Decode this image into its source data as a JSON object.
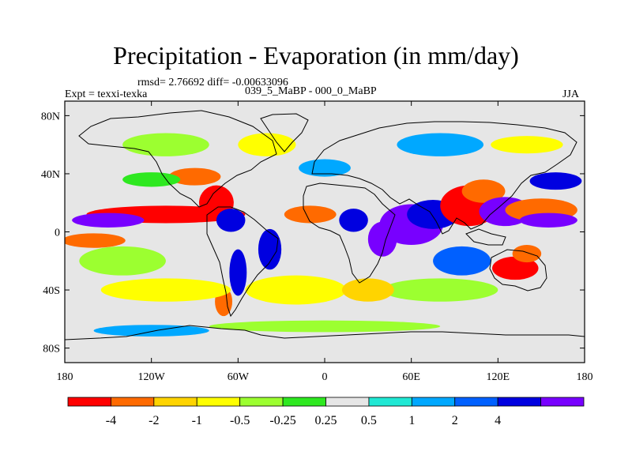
{
  "header": {
    "title": "Precipitation - Evaporation (in mm/day)",
    "stats": "rmsd= 2.76692 diff= -0.00633096",
    "subtitle": "039_5_MaBP - 000_0_MaBP",
    "experiment": "Expt = texxi-texka",
    "season": "JJA"
  },
  "chart_data": {
    "type": "heatmap",
    "title": "Precipitation - Evaporation (in mm/day)",
    "subtitle": "039_5_MaBP - 000_0_MaBP",
    "xlabel": "",
    "ylabel": "",
    "xlim": [
      -180,
      180
    ],
    "ylim": [
      -90,
      90
    ],
    "x_ticks": [
      {
        "value": -180,
        "label": "180"
      },
      {
        "value": -120,
        "label": "120W"
      },
      {
        "value": -60,
        "label": "60W"
      },
      {
        "value": 0,
        "label": "0"
      },
      {
        "value": 60,
        "label": "60E"
      },
      {
        "value": 120,
        "label": "120E"
      },
      {
        "value": 180,
        "label": "180"
      }
    ],
    "y_ticks": [
      {
        "value": 80,
        "label": "80N"
      },
      {
        "value": 40,
        "label": "40N"
      },
      {
        "value": 0,
        "label": "0"
      },
      {
        "value": -40,
        "label": "40S"
      },
      {
        "value": -80,
        "label": "80S"
      }
    ],
    "colorbar": {
      "levels": [
        -4,
        -2,
        -1,
        -0.5,
        -0.25,
        0.25,
        0.5,
        1,
        2,
        4
      ],
      "labels": [
        "-4",
        "-2",
        "-1",
        "-0.5",
        "-0.25",
        "0.25",
        "0.5",
        "1",
        "2",
        "4"
      ],
      "colors": [
        "#ff0000",
        "#ff6a00",
        "#ffd400",
        "#ffff00",
        "#9cff30",
        "#2ee820",
        "#e6e6e6",
        "#20e8d4",
        "#00a8ff",
        "#0060ff",
        "#0000e0",
        "#7800ff"
      ]
    },
    "anomaly_regions": [
      {
        "lon": -110,
        "lat": 12,
        "rlon": 55,
        "rlat": 6,
        "level": 0
      },
      {
        "lon": -150,
        "lat": 8,
        "rlon": 25,
        "rlat": 5,
        "level": 11
      },
      {
        "lon": -160,
        "lat": -6,
        "rlon": 22,
        "rlat": 5,
        "level": 1
      },
      {
        "lon": -75,
        "lat": 20,
        "rlon": 12,
        "rlat": 12,
        "level": 0
      },
      {
        "lon": -65,
        "lat": 8,
        "rlon": 10,
        "rlat": 8,
        "level": 10
      },
      {
        "lon": -60,
        "lat": -28,
        "rlon": 6,
        "rlat": 16,
        "level": 10
      },
      {
        "lon": -38,
        "lat": -12,
        "rlon": 8,
        "rlat": 14,
        "level": 10
      },
      {
        "lon": -70,
        "lat": -48,
        "rlon": 6,
        "rlat": 10,
        "level": 1
      },
      {
        "lon": -90,
        "lat": 38,
        "rlon": 18,
        "rlat": 6,
        "level": 1
      },
      {
        "lon": -120,
        "lat": 36,
        "rlon": 20,
        "rlat": 5,
        "level": 5
      },
      {
        "lon": -140,
        "lat": -20,
        "rlon": 30,
        "rlat": 10,
        "level": 4
      },
      {
        "lon": -110,
        "lat": -40,
        "rlon": 45,
        "rlat": 8,
        "level": 3
      },
      {
        "lon": -20,
        "lat": -40,
        "rlon": 35,
        "rlat": 10,
        "level": 3
      },
      {
        "lon": 0,
        "lat": 44,
        "rlon": 18,
        "rlat": 6,
        "level": 8
      },
      {
        "lon": -10,
        "lat": 12,
        "rlon": 18,
        "rlat": 6,
        "level": 1
      },
      {
        "lon": 20,
        "lat": 8,
        "rlon": 10,
        "rlat": 8,
        "level": 10
      },
      {
        "lon": 40,
        "lat": -5,
        "rlon": 10,
        "rlat": 12,
        "level": 11
      },
      {
        "lon": 60,
        "lat": 5,
        "rlon": 22,
        "rlat": 14,
        "level": 11
      },
      {
        "lon": 75,
        "lat": 12,
        "rlon": 18,
        "rlat": 10,
        "level": 10
      },
      {
        "lon": 100,
        "lat": 18,
        "rlon": 20,
        "rlat": 14,
        "level": 0
      },
      {
        "lon": 110,
        "lat": 28,
        "rlon": 15,
        "rlat": 8,
        "level": 1
      },
      {
        "lon": 125,
        "lat": 14,
        "rlon": 18,
        "rlat": 10,
        "level": 11
      },
      {
        "lon": 150,
        "lat": 15,
        "rlon": 25,
        "rlat": 8,
        "level": 1
      },
      {
        "lon": 155,
        "lat": 8,
        "rlon": 20,
        "rlat": 5,
        "level": 11
      },
      {
        "lon": 160,
        "lat": 35,
        "rlon": 18,
        "rlat": 6,
        "level": 10
      },
      {
        "lon": 132,
        "lat": -25,
        "rlon": 16,
        "rlat": 8,
        "level": 0
      },
      {
        "lon": 140,
        "lat": -15,
        "rlon": 10,
        "rlat": 6,
        "level": 1
      },
      {
        "lon": 95,
        "lat": -20,
        "rlon": 20,
        "rlat": 10,
        "level": 9
      },
      {
        "lon": 80,
        "lat": -40,
        "rlon": 40,
        "rlat": 8,
        "level": 4
      },
      {
        "lon": 30,
        "lat": -40,
        "rlon": 18,
        "rlat": 8,
        "level": 2
      },
      {
        "lon": -40,
        "lat": 60,
        "rlon": 20,
        "rlat": 8,
        "level": 3
      },
      {
        "lon": -110,
        "lat": 60,
        "rlon": 30,
        "rlat": 8,
        "level": 4
      },
      {
        "lon": 80,
        "lat": 60,
        "rlon": 30,
        "rlat": 8,
        "level": 8
      },
      {
        "lon": 140,
        "lat": 60,
        "rlon": 25,
        "rlat": 6,
        "level": 3
      },
      {
        "lon": 0,
        "lat": -65,
        "rlon": 80,
        "rlat": 4,
        "level": 4
      },
      {
        "lon": -120,
        "lat": -68,
        "rlon": 40,
        "rlat": 4,
        "level": 8
      }
    ]
  }
}
